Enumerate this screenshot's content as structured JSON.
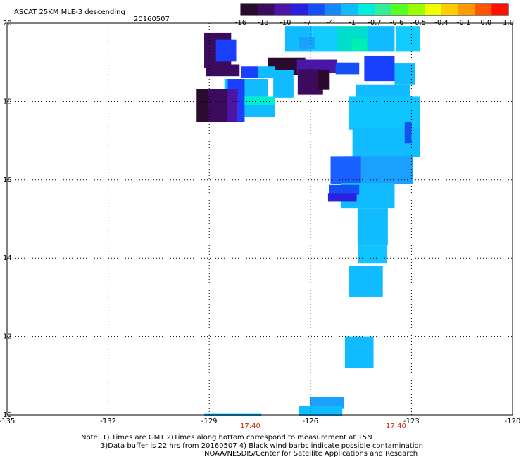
{
  "header": {
    "title": "ASCAT 25KM MLE-3 descending",
    "date": "20160507"
  },
  "colorbar": {
    "labels": [
      "-16",
      "-13",
      "-10",
      "-7",
      "-4",
      "-1",
      "-0.7",
      "-0.6",
      "-0.5",
      "-0.4",
      "-0.1",
      "0.0",
      "1.0"
    ],
    "colors": [
      "#2a0a2e",
      "#3d0b5e",
      "#4b16a8",
      "#2a20e0",
      "#1450f5",
      "#1488ff",
      "#10bbff",
      "#00eedd",
      "#33ee99",
      "#55ff22",
      "#99ff00",
      "#eeff00",
      "#ffcc00",
      "#ff9900",
      "#ff5500",
      "#ff1100"
    ]
  },
  "map": {
    "lon_range": [
      -135,
      -120
    ],
    "lat_range": [
      10,
      20
    ],
    "lon_ticks": [
      "-135",
      "-132",
      "-129",
      "-126",
      "-123",
      "-120"
    ],
    "lat_ticks": [
      "20",
      "18",
      "16",
      "14",
      "12",
      "10"
    ],
    "pass_times": [
      "17:40",
      "17:40"
    ],
    "swath_cells": [
      {
        "lon": -126.35,
        "lat": 19.6,
        "w": 0.8,
        "h": 0.65,
        "color": "#10bbff"
      },
      {
        "lon": -125.55,
        "lat": 19.6,
        "w": 0.8,
        "h": 0.65,
        "color": "#10ccff"
      },
      {
        "lon": -124.75,
        "lat": 19.6,
        "w": 0.9,
        "h": 0.65,
        "color": "#00ddcc"
      },
      {
        "lon": -123.9,
        "lat": 19.6,
        "w": 0.8,
        "h": 0.65,
        "color": "#10bbff"
      },
      {
        "lon": -123.1,
        "lat": 19.6,
        "w": 0.7,
        "h": 0.65,
        "color": "#10ccff"
      },
      {
        "lon": -126.1,
        "lat": 19.5,
        "w": 0.45,
        "h": 0.3,
        "color": "#1aa0ff"
      },
      {
        "lon": -124.55,
        "lat": 19.45,
        "w": 0.45,
        "h": 0.3,
        "color": "#00eeb0"
      },
      {
        "lon": -128.75,
        "lat": 19.3,
        "w": 0.8,
        "h": 0.9,
        "color": "#3d0b5e"
      },
      {
        "lon": -128.5,
        "lat": 19.3,
        "w": 0.6,
        "h": 0.55,
        "color": "#1a40ff"
      },
      {
        "lon": -126.7,
        "lat": 18.9,
        "w": 1.1,
        "h": 0.45,
        "color": "#2a0a2e"
      },
      {
        "lon": -125.8,
        "lat": 18.9,
        "w": 1.2,
        "h": 0.35,
        "color": "#4b16a8"
      },
      {
        "lon": -124.9,
        "lat": 18.85,
        "w": 0.7,
        "h": 0.3,
        "color": "#1450f5"
      },
      {
        "lon": -123.95,
        "lat": 18.85,
        "w": 0.9,
        "h": 0.65,
        "color": "#1a40ff"
      },
      {
        "lon": -123.2,
        "lat": 18.7,
        "w": 0.6,
        "h": 0.55,
        "color": "#10bbff"
      },
      {
        "lon": -128.6,
        "lat": 18.8,
        "w": 1.0,
        "h": 0.3,
        "color": "#3d0b5e"
      },
      {
        "lon": -127.8,
        "lat": 18.75,
        "w": 0.5,
        "h": 0.3,
        "color": "#1a40ff"
      },
      {
        "lon": -127.3,
        "lat": 18.75,
        "w": 0.5,
        "h": 0.3,
        "color": "#10bbff"
      },
      {
        "lon": -127.9,
        "lat": 18.35,
        "w": 1.3,
        "h": 0.45,
        "color": "#10bbff"
      },
      {
        "lon": -128.2,
        "lat": 18.35,
        "w": 0.5,
        "h": 0.45,
        "color": "#1a40ff"
      },
      {
        "lon": -126.8,
        "lat": 18.45,
        "w": 0.6,
        "h": 0.7,
        "color": "#10bbff"
      },
      {
        "lon": -126.0,
        "lat": 18.5,
        "w": 0.75,
        "h": 0.65,
        "color": "#3d0b5e"
      },
      {
        "lon": -125.6,
        "lat": 18.55,
        "w": 0.35,
        "h": 0.5,
        "color": "#2a0a2e"
      },
      {
        "lon": -129.2,
        "lat": 17.9,
        "w": 0.35,
        "h": 0.85,
        "color": "#2a0a2e"
      },
      {
        "lon": -128.75,
        "lat": 17.9,
        "w": 0.6,
        "h": 0.85,
        "color": "#3d0b5e"
      },
      {
        "lon": -128.3,
        "lat": 17.9,
        "w": 0.3,
        "h": 0.85,
        "color": "#4b16a8"
      },
      {
        "lon": -128.05,
        "lat": 17.9,
        "w": 0.2,
        "h": 0.85,
        "color": "#1a40ff"
      },
      {
        "lon": -127.5,
        "lat": 18.0,
        "w": 0.9,
        "h": 0.25,
        "color": "#00eed0"
      },
      {
        "lon": -127.5,
        "lat": 17.75,
        "w": 0.9,
        "h": 0.3,
        "color": "#10bbff"
      },
      {
        "lon": -123.85,
        "lat": 18.25,
        "w": 1.6,
        "h": 0.35,
        "color": "#10bbff"
      },
      {
        "lon": -123.8,
        "lat": 17.7,
        "w": 2.1,
        "h": 0.85,
        "color": "#10c4ff"
      },
      {
        "lon": -123.75,
        "lat": 16.95,
        "w": 2.0,
        "h": 0.75,
        "color": "#10bbff"
      },
      {
        "lon": -124.0,
        "lat": 16.25,
        "w": 2.1,
        "h": 0.7,
        "color": "#1aa0ff"
      },
      {
        "lon": -124.95,
        "lat": 16.25,
        "w": 0.9,
        "h": 0.7,
        "color": "#1a60ff"
      },
      {
        "lon": -123.1,
        "lat": 17.2,
        "w": 0.2,
        "h": 0.55,
        "color": "#1450f5"
      },
      {
        "lon": -124.3,
        "lat": 15.6,
        "w": 1.6,
        "h": 0.65,
        "color": "#10bbff"
      },
      {
        "lon": -125.0,
        "lat": 15.75,
        "w": 0.9,
        "h": 0.25,
        "color": "#1450f5"
      },
      {
        "lon": -125.05,
        "lat": 15.55,
        "w": 0.85,
        "h": 0.2,
        "color": "#2a20e0"
      },
      {
        "lon": -124.15,
        "lat": 14.8,
        "w": 0.9,
        "h": 0.95,
        "color": "#10bbff"
      },
      {
        "lon": -124.15,
        "lat": 14.1,
        "w": 0.85,
        "h": 0.45,
        "color": "#10c4ff"
      },
      {
        "lon": -124.35,
        "lat": 13.4,
        "w": 1.0,
        "h": 0.8,
        "color": "#10bbff"
      },
      {
        "lon": -124.55,
        "lat": 11.6,
        "w": 0.85,
        "h": 0.8,
        "color": "#10bbff"
      },
      {
        "lon": -125.5,
        "lat": 10.3,
        "w": 1.0,
        "h": 0.3,
        "color": "#1aa0ff"
      },
      {
        "lon": -125.7,
        "lat": 10.1,
        "w": 1.3,
        "h": 0.25,
        "color": "#10bbff"
      },
      {
        "lon": -128.3,
        "lat": 10.0,
        "w": 1.7,
        "h": 0.05,
        "color": "#10bbff"
      }
    ]
  },
  "notes": {
    "line1": "Note: 1) Times are GMT 2)Times along bottom correspond to measurement at 15N",
    "line2": "3)Data buffer is 22 hrs from 20160507 4) Black wind barbs indicate possible contamination",
    "line3": "NOAA/NESDIS/Center for Satellite Applications and Research"
  }
}
